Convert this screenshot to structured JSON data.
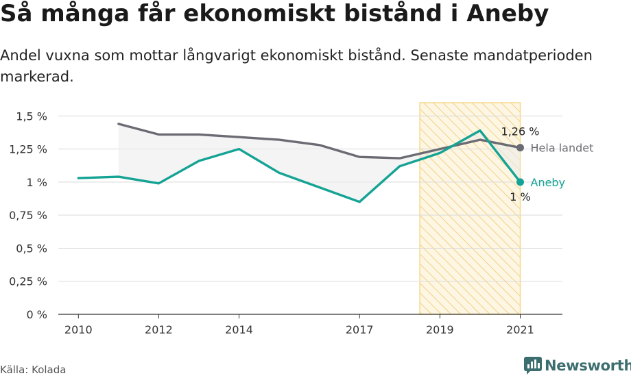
{
  "title": "Så många får ekonomiskt bistånd i Aneby",
  "subtitle": "Andel vuxna som mottar långvarigt ekonomiskt bistånd. Senaste mandatperioden markerad.",
  "source": "Källa: Kolada",
  "brand": "Newsworthy",
  "colors": {
    "aneby": "#14a394",
    "national": "#6b6b73",
    "highlight": "#f6d88a",
    "grid": "#d9d9d9"
  },
  "chart_data": {
    "type": "line",
    "title": "Så många får ekonomiskt bistånd i Aneby",
    "subtitle": "Andel vuxna som mottar långvarigt ekonomiskt bistånd. Senaste mandatperioden markerad.",
    "x": [
      2010,
      2011,
      2012,
      2013,
      2014,
      2015,
      2016,
      2017,
      2018,
      2019,
      2020,
      2021
    ],
    "x_ticks": [
      "2010",
      "2012",
      "2014",
      "2017",
      "2019",
      "2021"
    ],
    "y_ticks": [
      "0 %",
      "0,25 %",
      "0,5 %",
      "0,75 %",
      "1 %",
      "1,25 %",
      "1,5 %"
    ],
    "ylim": [
      0,
      1.6
    ],
    "highlight_range": [
      2018.5,
      2021
    ],
    "series": [
      {
        "name": "Aneby",
        "label": "Aneby",
        "end_value": "1 %",
        "color": "#14a394",
        "values": [
          1.03,
          1.04,
          0.99,
          1.16,
          1.25,
          1.07,
          0.96,
          0.85,
          1.12,
          1.22,
          1.39,
          1.0
        ]
      },
      {
        "name": "Hela landet",
        "label": "Hela landet",
        "end_value": "1,26 %",
        "color": "#6b6b73",
        "values": [
          null,
          1.44,
          1.36,
          1.36,
          1.34,
          1.32,
          1.28,
          1.19,
          1.18,
          1.25,
          1.32,
          1.26
        ]
      }
    ],
    "grid": true
  }
}
